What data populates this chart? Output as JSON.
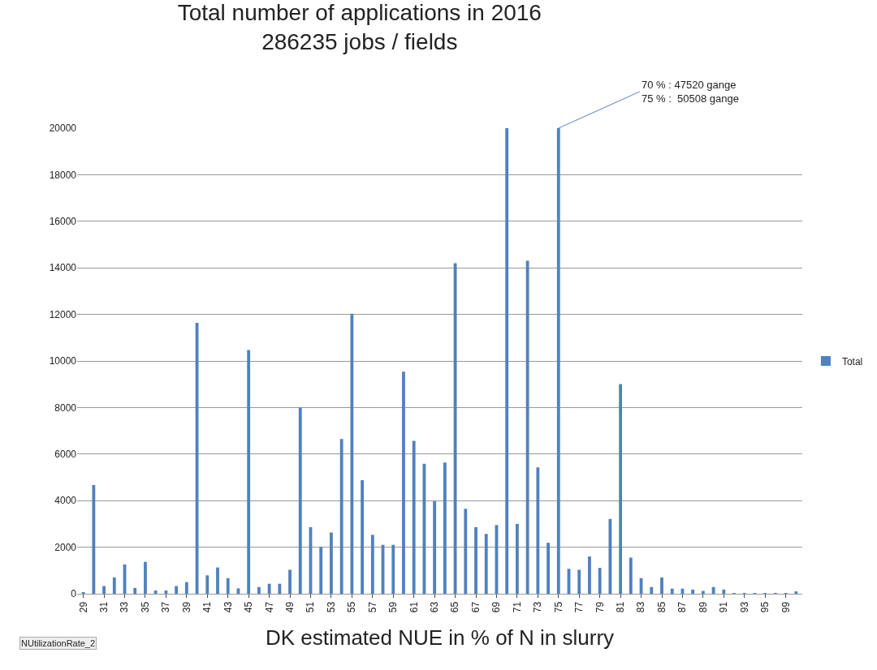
{
  "chart_data": {
    "type": "bar",
    "title": "Total number of applications in 2016\n286235 jobs / fields",
    "xlabel": "DK estimated NUE in % of N in slurry",
    "categories": [
      "29",
      null,
      "31",
      null,
      "33",
      null,
      "35",
      null,
      "37",
      null,
      "39",
      null,
      "41",
      null,
      "43",
      null,
      "45",
      null,
      "47",
      null,
      "49",
      null,
      "51",
      null,
      "53",
      null,
      "55",
      null,
      "57",
      null,
      "59",
      null,
      "61",
      null,
      "63",
      null,
      "65",
      null,
      "67",
      null,
      "69",
      null,
      "71",
      null,
      "73",
      null,
      "75",
      null,
      "77",
      null,
      "79",
      null,
      "81",
      null,
      "83",
      null,
      "85",
      null,
      "87",
      null,
      "89",
      null,
      "91",
      null,
      "93",
      null,
      "95",
      null,
      "99",
      null
    ],
    "series": [
      {
        "name": "Total",
        "color": "#4f81bd",
        "values": [
          50,
          4670,
          330,
          700,
          1260,
          250,
          1370,
          140,
          140,
          330,
          500,
          11640,
          790,
          1130,
          670,
          230,
          10470,
          290,
          430,
          430,
          1030,
          8000,
          2860,
          2010,
          2630,
          6650,
          12030,
          4880,
          2530,
          2100,
          2100,
          9540,
          6570,
          5580,
          3970,
          5640,
          14200,
          3650,
          2860,
          2570,
          2950,
          20000,
          3000,
          14300,
          5430,
          2190,
          20000,
          1070,
          1030,
          1600,
          1110,
          3210,
          9010,
          1550,
          670,
          290,
          700,
          220,
          220,
          180,
          120,
          290,
          180,
          20,
          20,
          20,
          20,
          20,
          20,
          100
        ]
      }
    ],
    "ylim": [
      0,
      20000
    ],
    "yticks": [
      0,
      2000,
      4000,
      6000,
      8000,
      10000,
      12000,
      14000,
      16000,
      18000,
      20000
    ],
    "grid": "y",
    "legend": "right",
    "annotations": [
      {
        "text": "70 % : 47520 gange\n75 % :  50508 gange",
        "x": "75",
        "y": 20000
      },
      "NUtilizationRate_2"
    ]
  }
}
